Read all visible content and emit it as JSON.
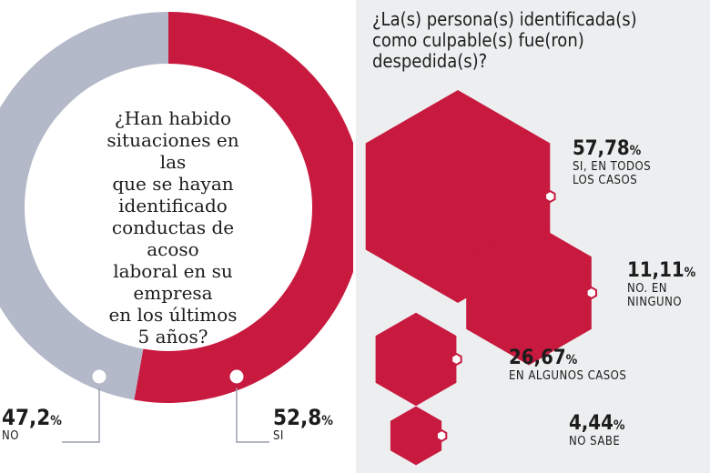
{
  "colors": {
    "accent": "#c8193f",
    "gray": "#b4b9c9"
  },
  "left": {
    "question": "¿Han habido\nsituaciones en las\nque se hayan\nidentificado\nconductas de  acoso\nlaboral en su empresa\nen los últimos\n5 años?"
  },
  "right": {
    "title": "¿La(s) persona(s) identificada(s)\ncomo culpable(s) fue(ron)\ndespedida(s)?"
  },
  "chart_data": [
    {
      "type": "pie",
      "title": "¿Han habido situaciones en las que se hayan identificado conductas de  acoso laboral en su empresa en los últimos 5 años?",
      "slices": [
        {
          "label": "SI",
          "value": 52.8,
          "display": "52,8",
          "unit": "%",
          "color": "#c8193f"
        },
        {
          "label": "NO",
          "value": 47.2,
          "display": "47,2",
          "unit": "%",
          "color": "#b4b9c9"
        }
      ]
    },
    {
      "type": "bar",
      "title": "¿La(s) persona(s) identificada(s) como culpable(s) fue(ron) despedida(s)?",
      "categories": [
        "SI, EN TODOS LOS CASOS",
        "NO. EN NINGUNO",
        "EN ALGUNOS CASOS",
        "NO SABE"
      ],
      "values": [
        57.78,
        11.11,
        26.67,
        4.44
      ],
      "display": [
        "57,78",
        "11,11",
        "26,67",
        "4,44"
      ],
      "unit": "%",
      "labels": [
        "SI, EN TODOS\nLOS CASOS",
        "NO. EN\nNINGUNO",
        "EN ALGUNOS CASOS",
        "NO SABE"
      ],
      "color": "#c8193f"
    }
  ]
}
